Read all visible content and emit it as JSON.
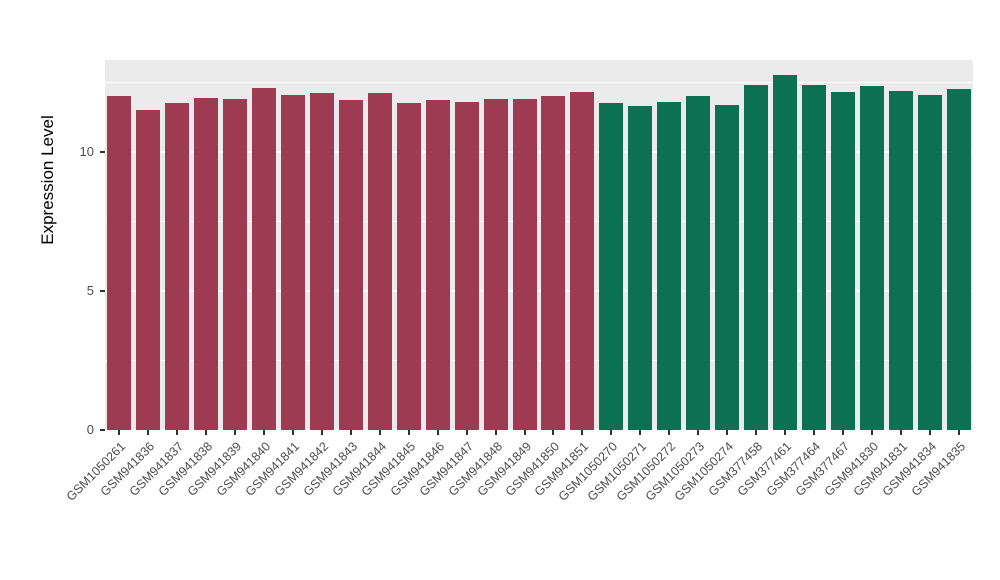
{
  "chart_data": {
    "type": "bar",
    "title": "",
    "xlabel": "",
    "ylabel": "Expression Level",
    "ylim": [
      0,
      13.3
    ],
    "yticks": [
      0,
      5,
      10
    ],
    "minor_gridlines": [
      2.5,
      7.5,
      12.5
    ],
    "grid": "on",
    "legend": "none",
    "panel_background": "#EBEBEB",
    "grid_color": "#FFFFFF",
    "tick_label_color": "#4D4D4D",
    "categories": [
      "GSM1050261",
      "GSM941836",
      "GSM941837",
      "GSM941838",
      "GSM941839",
      "GSM941840",
      "GSM941841",
      "GSM941842",
      "GSM941843",
      "GSM941844",
      "GSM941845",
      "GSM941846",
      "GSM941847",
      "GSM941848",
      "GSM941849",
      "GSM941850",
      "GSM941851",
      "GSM1050270",
      "GSM1050271",
      "GSM1050272",
      "GSM1050273",
      "GSM1050274",
      "GSM377458",
      "GSM377461",
      "GSM377464",
      "GSM377467",
      "GSM941830",
      "GSM941831",
      "GSM941834",
      "GSM941835"
    ],
    "values": [
      12.0,
      11.5,
      11.75,
      11.95,
      11.9,
      12.3,
      12.05,
      12.1,
      11.85,
      12.1,
      11.75,
      11.85,
      11.8,
      11.9,
      11.9,
      12.0,
      12.15,
      11.75,
      11.65,
      11.8,
      12.0,
      11.7,
      12.4,
      12.75,
      12.4,
      12.15,
      12.35,
      12.2,
      12.05,
      12.25
    ],
    "groups": [
      "g1",
      "g1",
      "g1",
      "g1",
      "g1",
      "g1",
      "g1",
      "g1",
      "g1",
      "g1",
      "g1",
      "g1",
      "g1",
      "g1",
      "g1",
      "g1",
      "g1",
      "g2",
      "g2",
      "g2",
      "g2",
      "g2",
      "g2",
      "g2",
      "g2",
      "g2",
      "g2",
      "g2",
      "g2",
      "g2"
    ],
    "group_colors": {
      "g1": "#9E3A52",
      "g2": "#0B7150"
    }
  }
}
